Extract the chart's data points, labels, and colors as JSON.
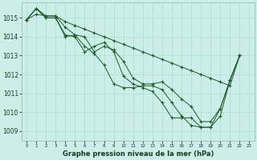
{
  "title": "Graphe pression niveau de la mer (hPa)",
  "bg_color": "#cceee8",
  "grid_color": "#aaddcc",
  "line_color": "#1a5c28",
  "xlim": [
    -0.5,
    23.5
  ],
  "ylim": [
    1008.5,
    1015.8
  ],
  "yticks": [
    1009,
    1010,
    1011,
    1012,
    1013,
    1014,
    1015
  ],
  "xtick_labels": [
    "0",
    "1",
    "2",
    "3",
    "4",
    "5",
    "6",
    "7",
    "8",
    "9",
    "10",
    "11",
    "12",
    "13",
    "14",
    "15",
    "16",
    "17",
    "18",
    "19",
    "20",
    "21",
    "22",
    "23"
  ],
  "series": [
    {
      "x": [
        0,
        1,
        2,
        3,
        4,
        5,
        6,
        7,
        8,
        9,
        10,
        11,
        12,
        13,
        14,
        15,
        16,
        17,
        18,
        19,
        20,
        21,
        22
      ],
      "y": [
        1014.9,
        1015.5,
        1015.0,
        1015.0,
        1014.1,
        1014.0,
        1013.2,
        1013.5,
        1013.7,
        1013.2,
        1011.9,
        1011.5,
        1011.3,
        1011.1,
        1010.5,
        1009.7,
        1009.7,
        1009.7,
        1009.2,
        1009.2,
        1009.8,
        1011.7,
        1013.0
      ]
    },
    {
      "x": [
        0,
        1,
        2,
        3,
        4,
        5,
        6,
        7,
        8,
        9,
        10,
        11,
        12,
        13,
        14,
        15,
        16,
        17,
        18,
        19,
        20,
        21,
        22
      ],
      "y": [
        1014.9,
        1015.5,
        1015.0,
        1015.0,
        1014.0,
        1014.1,
        1013.5,
        1013.1,
        1012.5,
        1011.5,
        1011.3,
        1011.3,
        1011.4,
        1011.4,
        1011.2,
        1010.5,
        1009.8,
        1009.3,
        1009.2,
        1009.2,
        1010.2,
        1011.7,
        1013.0
      ]
    },
    {
      "x": [
        0,
        1,
        2,
        3,
        4,
        5,
        6,
        7,
        8,
        9,
        10,
        11,
        12,
        13,
        14,
        15,
        16,
        17,
        18,
        19,
        20,
        21,
        22
      ],
      "y": [
        1014.9,
        1015.5,
        1015.1,
        1015.1,
        1014.5,
        1014.1,
        1014.0,
        1013.2,
        1013.5,
        1013.3,
        1012.7,
        1011.8,
        1011.5,
        1011.5,
        1011.6,
        1011.2,
        1010.7,
        1010.3,
        1009.5,
        1009.5,
        1010.2,
        1011.7,
        1013.0
      ]
    },
    {
      "x": [
        0,
        1,
        2,
        3,
        4,
        5,
        6,
        7,
        8,
        9,
        10,
        11,
        12,
        13,
        14,
        15,
        16,
        17,
        18,
        19,
        20,
        21,
        22
      ],
      "y": [
        1014.9,
        1015.2,
        1015.1,
        1015.1,
        1014.8,
        1014.6,
        1014.4,
        1014.2,
        1014.0,
        1013.8,
        1013.6,
        1013.4,
        1013.2,
        1013.0,
        1012.8,
        1012.6,
        1012.4,
        1012.2,
        1012.0,
        1011.8,
        1011.6,
        1011.4,
        1013.0
      ]
    }
  ]
}
